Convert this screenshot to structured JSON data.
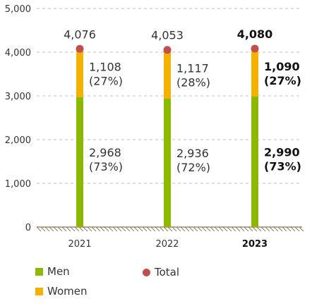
{
  "colors": {
    "men": "#8DB800",
    "women": "#F4B200",
    "total": "#C0504D",
    "grid": "#BFBFBF",
    "baseline": "#8B7355"
  },
  "legend": {
    "men": "Men",
    "women": "Women",
    "total": "Total"
  },
  "chart_data": {
    "type": "bar",
    "stacked": true,
    "categories": [
      "2021",
      "2022",
      "2023"
    ],
    "highlight_category": "2023",
    "series": [
      {
        "name": "Men",
        "values": [
          2968,
          2936,
          2990
        ],
        "labels": [
          "2,968",
          "2,936",
          "2,990"
        ],
        "pct_labels": [
          "(73%)",
          "(72%)",
          "(73%)"
        ]
      },
      {
        "name": "Women",
        "values": [
          1108,
          1117,
          1090
        ],
        "labels": [
          "1,108",
          "1,117",
          "1,090"
        ],
        "pct_labels": [
          "(27%)",
          "(28%)",
          "(27%)"
        ]
      }
    ],
    "totals": {
      "name": "Total",
      "values": [
        4076,
        4053,
        4080
      ],
      "labels": [
        "4,076",
        "4,053",
        "4,080"
      ]
    },
    "ylim": [
      0,
      5000
    ],
    "yticks": [
      0,
      1000,
      2000,
      3000,
      4000,
      5000
    ],
    "ytick_labels": [
      "0",
      "1,000",
      "2,000",
      "3,000",
      "4,000",
      "5,000"
    ],
    "grid": true,
    "legend_position": "bottom-left"
  }
}
